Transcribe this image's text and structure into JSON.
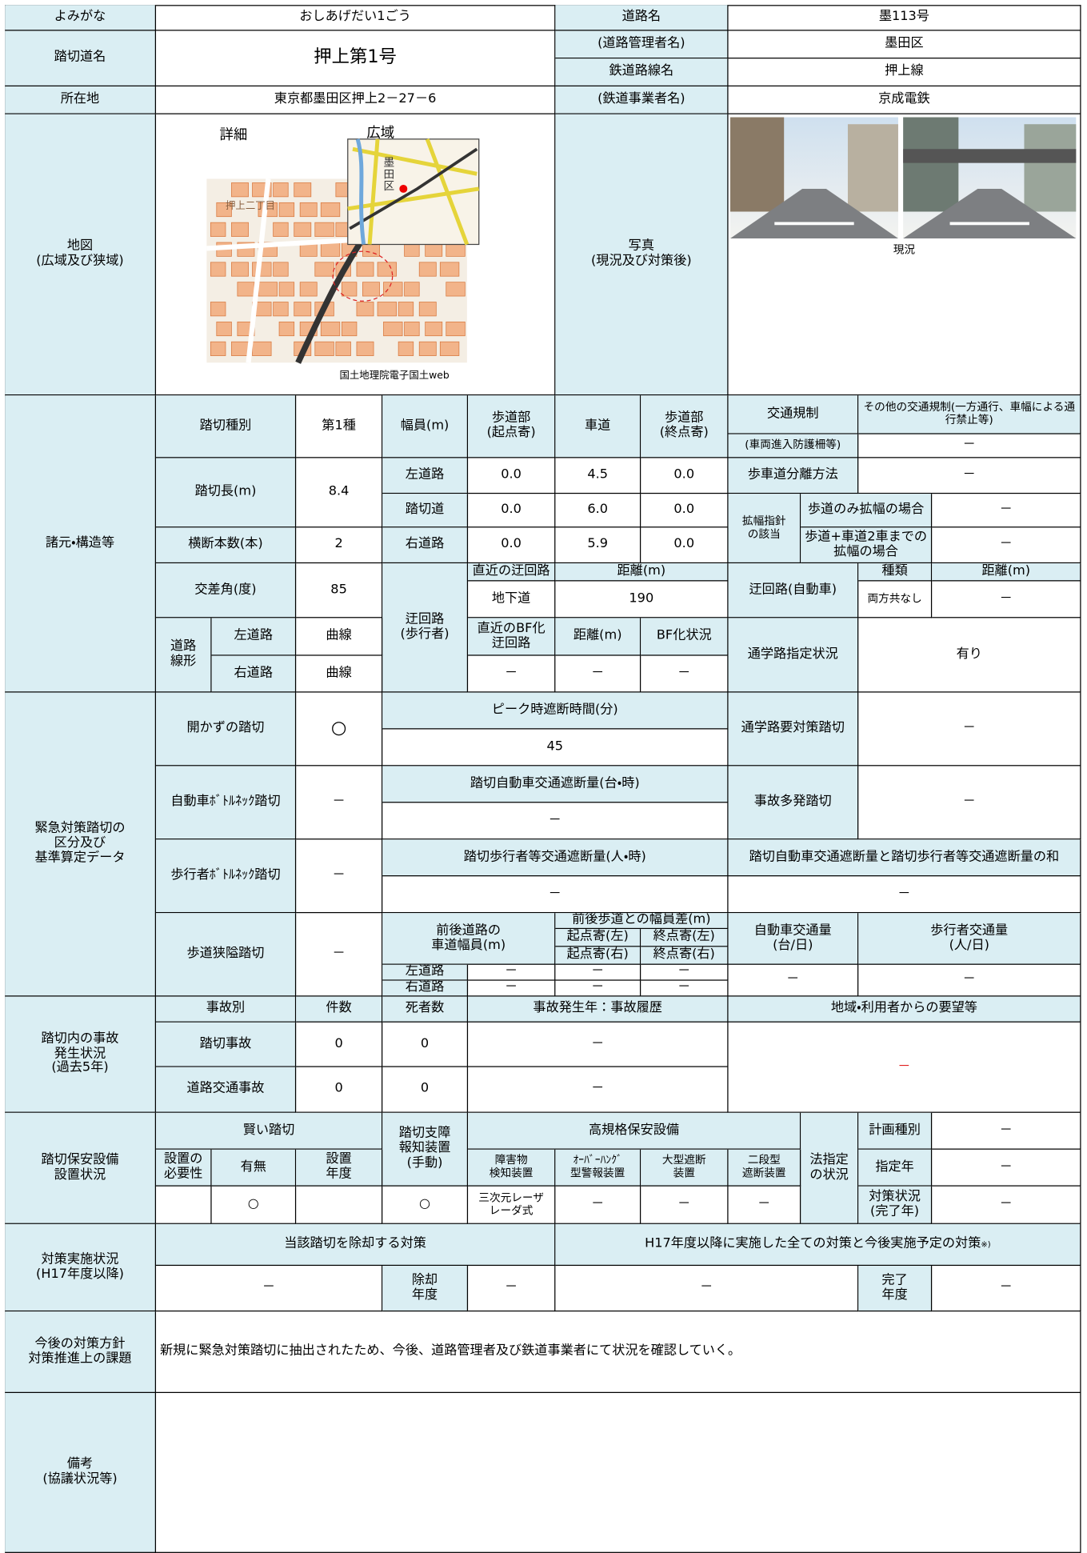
{
  "header": {
    "cells": [
      "よみがな",
      "おしあげだい1ごう",
      "道路名",
      "墨113号",
      "踏切道名",
      "押上第1号",
      "(道路管理者名)",
      "墨田区",
      "鉄道路線名",
      "押上線",
      "所在地",
      "東京都墨田区押上2－27－6",
      "(鉄道事業者名)",
      "京成電鉄",
      "地図\n(広域及び狭域)",
      "写真\n(現況及び対策後)"
    ]
  },
  "map": {
    "detail": "詳細",
    "wide": "広域",
    "area": "押上二丁目",
    "ward": "墨\n田\n区",
    "credit": "国土地理院電子国土web"
  },
  "photo": {
    "caption": "現況"
  },
  "spec": {
    "title": "諸元・構造等",
    "cells": [
      "踏切種別",
      "第1種",
      "幅員(m)",
      "歩道部\n(起点寄)",
      "車道",
      "歩道部\n(終点寄)",
      "交通規制",
      "その他の交通規制(一方通行、車幅による通行禁止等)",
      "(車両進入防護柵等)",
      "－",
      "踏切長(m)",
      "8.4",
      "左道路",
      "0.0",
      "4.5",
      "0.0",
      "歩車道分離方法",
      "－",
      "踏切道",
      "0.0",
      "6.0",
      "0.0",
      "拡幅指針\nの該当",
      "歩道のみ拡幅の場合",
      "－",
      "歩道+車道2車までの\n拡幅の場合",
      "－",
      "横断本数(本)",
      "2",
      "右道路",
      "0.0",
      "5.9",
      "0.0",
      "交差角(度)",
      "85",
      "迂回路\n(歩行者)",
      "直近の迂回路",
      "距離(m)",
      "地下道",
      "190",
      "迂回路(自動車)",
      "種類",
      "距離(m)",
      "両方共なし",
      "－",
      "道路\n線形",
      "左道路",
      "曲線",
      "直近のBF化\n迂回路",
      "距離(m)",
      "BF化状況",
      "通学路指定状況",
      "有り",
      "右道路",
      "曲線",
      "－",
      "－",
      "－"
    ]
  },
  "emergency": {
    "title": "緊急対策踏切の\n区分及び\n基準算定データ",
    "cells": [
      "開かずの踏切",
      "○",
      "ピーク時遮断時間(分)",
      "45",
      "通学路要対策踏切",
      "－",
      "自動車ﾎﾞﾄﾙﾈｯｸ踏切",
      "－",
      "踏切自動車交通遮断量(台・時)",
      "－",
      "事故多発踏切",
      "－",
      "歩行者ﾎﾞﾄﾙﾈｯｸ踏切",
      "－",
      "踏切歩行者等交通遮断量(人・時)",
      "－",
      "踏切自動車交通遮断量と踏切歩行者等交通遮断量の和",
      "－",
      "歩道狭隘踏切",
      "－",
      "前後道路の\n車道幅員(m)",
      "前後歩道との幅員差(m)",
      "起点寄(左)",
      "終点寄(左)",
      "起点寄(右)",
      "終点寄(右)",
      "自動車交通量\n(台/日)",
      "歩行者交通量\n(人/日)",
      "左道路",
      "－",
      "－",
      "－",
      "－",
      "－",
      "右道路",
      "－",
      "－",
      "－"
    ]
  },
  "accidents": {
    "title": "踏切内の事故\n発生状況\n(過去5年)",
    "cells": [
      "事故別",
      "件数",
      "死者数",
      "事故発生年：事故履歴",
      "地域・利用者からの要望等",
      "踏切事故",
      "0",
      "0",
      "－",
      "－",
      "道路交通事故",
      "0",
      "0",
      "－"
    ]
  },
  "safety": {
    "title": "踏切保安設備\n設置状況",
    "cells": [
      "賢い踏切",
      "踏切支障\n報知装置\n(手動)",
      "高規格保安設備",
      "法指定\nの状況",
      "計画種別",
      "－",
      "設置の\n必要性",
      "有無",
      "設置\n年度",
      "障害物\n検知装置",
      "ｵｰﾊﾞｰﾊﾝｸﾞ\n型警報装置",
      "大型遮断\n装置",
      "二段型\n遮断装置",
      "指定年",
      "－",
      "○",
      "○",
      "三次元レーザ\nレーダ式",
      "－",
      "－",
      "－",
      "対策状況\n(完了年)",
      "－"
    ]
  },
  "measures": {
    "title": "対策実施状況\n(H17年度以降)",
    "cells": [
      "当該踏切を除却する対策",
      "H17年度以降に実施した全ての対策と今後実施予定の対策",
      "－",
      "除却\n年度",
      "－",
      "－",
      "完了\n年度",
      "－"
    ],
    "note": "※)"
  },
  "policy": {
    "title": "今後の対策方針\n対策推進上の課題",
    "cells": [
      "新規に緊急対策踏切に抽出されたため、今後、道路管理者及び鉄道事業者にて状況を確認していく。"
    ]
  },
  "remarks": {
    "title": "備考\n(協議状況等)"
  }
}
